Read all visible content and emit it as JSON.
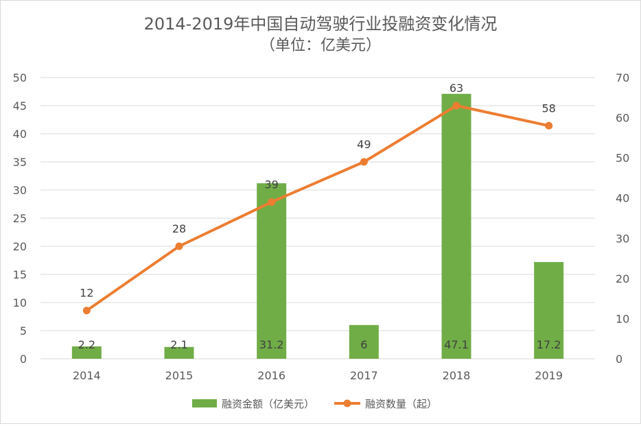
{
  "chart_data": {
    "type": "bar+line",
    "title": "2014-2019年中国自动驾驶行业投融资变化情况",
    "subtitle": "（单位：亿美元）",
    "categories": [
      "2014",
      "2015",
      "2016",
      "2017",
      "2018",
      "2019"
    ],
    "series": [
      {
        "name": "融资金额（亿美元）",
        "type": "bar",
        "axis": "left",
        "color": "#70ad47",
        "values": [
          2.2,
          2.1,
          31.2,
          6,
          47.1,
          17.2
        ],
        "labels": [
          "2.2",
          "2.1",
          "31.2",
          "6",
          "47.1",
          "17.2"
        ]
      },
      {
        "name": "融资数量（起）",
        "type": "line",
        "axis": "right",
        "color": "#ed7d31",
        "values": [
          12,
          28,
          39,
          49,
          63,
          58
        ],
        "labels": [
          "12",
          "28",
          "39",
          "49",
          "63",
          "58"
        ]
      }
    ],
    "y_left": {
      "min": 0,
      "max": 50,
      "ticks": [
        "0",
        "5",
        "10",
        "15",
        "20",
        "25",
        "30",
        "35",
        "40",
        "45",
        "50"
      ]
    },
    "y_right": {
      "min": 0,
      "max": 70,
      "ticks": [
        "0",
        "10",
        "20",
        "30",
        "40",
        "50",
        "60",
        "70"
      ]
    },
    "grid": true,
    "legend_position": "bottom"
  }
}
